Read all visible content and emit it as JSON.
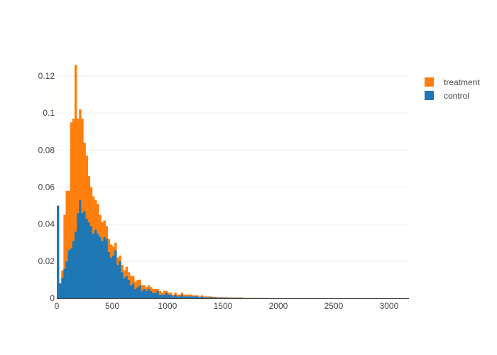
{
  "chart_data": {
    "type": "bar",
    "subtype": "stacked-histogram",
    "title": "",
    "xlabel": "",
    "ylabel": "",
    "bin_width": 20,
    "xlim": [
      0,
      3180
    ],
    "ylim": [
      0,
      0.13
    ],
    "x_ticks": [
      0,
      500,
      1000,
      1500,
      2000,
      2500,
      3000
    ],
    "y_ticks": [
      0,
      0.02,
      0.04,
      0.06,
      0.08,
      0.1,
      0.12
    ],
    "x_tick_labels": [
      "0",
      "500",
      "1000",
      "1500",
      "2000",
      "2500",
      "3000"
    ],
    "y_tick_labels": [
      "0",
      "0.02",
      "0.04",
      "0.06",
      "0.08",
      "0.1",
      "0.12"
    ],
    "grid": "horizontal",
    "legend_position": "top-right",
    "bin_starts": [
      0,
      20,
      40,
      60,
      80,
      100,
      120,
      140,
      160,
      180,
      200,
      220,
      240,
      260,
      280,
      300,
      320,
      340,
      360,
      380,
      400,
      420,
      440,
      460,
      480,
      500,
      520,
      540,
      560,
      580,
      600,
      620,
      640,
      660,
      680,
      700,
      720,
      740,
      760,
      780,
      800,
      820,
      840,
      860,
      880,
      900,
      920,
      940,
      960,
      980,
      1000,
      1020,
      1040,
      1060,
      1080,
      1100,
      1120,
      1140,
      1160,
      1180,
      1200,
      1220,
      1240,
      1260,
      1280,
      1300,
      1320,
      1340,
      1360,
      1380,
      1400,
      1420,
      1440,
      1460,
      1480,
      1500,
      1520,
      1540,
      1560,
      1580,
      1600,
      1620,
      1640,
      1660,
      1680,
      1700,
      1720,
      1740,
      1760,
      1780,
      1800,
      1820,
      1840,
      1860,
      1880
    ],
    "series": [
      {
        "name": "control",
        "color": "#1f77b4",
        "values": [
          0.05,
          0.008,
          0.011,
          0.016,
          0.02,
          0.026,
          0.027,
          0.031,
          0.036,
          0.046,
          0.053,
          0.046,
          0.047,
          0.043,
          0.041,
          0.039,
          0.035,
          0.037,
          0.035,
          0.033,
          0.031,
          0.033,
          0.032,
          0.025,
          0.022,
          0.023,
          0.026,
          0.018,
          0.02,
          0.014,
          0.011,
          0.012,
          0.01,
          0.007,
          0.008,
          0.005,
          0.006,
          0.007,
          0.004,
          0.005,
          0.004,
          0.005,
          0.004,
          0.003,
          0.003,
          0.004,
          0.002,
          0.002,
          0.002,
          0.003,
          0.002,
          0.002,
          0.001,
          0.002,
          0.001,
          0.001,
          0.002,
          0.001,
          0.001,
          0.001,
          0.001,
          0.001,
          0.001,
          0.001,
          0.0005,
          0.001,
          0.0005,
          0.0005,
          0.0005,
          0.0005,
          0.0005,
          0.0005,
          0.0003,
          0.0003,
          0.0003,
          0.0003,
          0.0003,
          0.0002,
          0.0002,
          0.0002,
          0.0002,
          0.0002,
          0.0002,
          0.0002,
          0.0001,
          0.0001,
          0.0001,
          0.0001,
          0.0001,
          0.0001,
          0.0001,
          0.0001,
          0.0001,
          0.0001,
          0.0001
        ]
      },
      {
        "name": "treatment",
        "color": "#ff7f0e",
        "values": [
          0.0,
          0.0,
          0.004,
          0.029,
          0.038,
          0.032,
          0.068,
          0.066,
          0.09,
          0.051,
          0.049,
          0.051,
          0.037,
          0.034,
          0.025,
          0.021,
          0.02,
          0.016,
          0.016,
          0.012,
          0.01,
          0.009,
          0.007,
          0.007,
          0.007,
          0.005,
          0.004,
          0.004,
          0.003,
          0.004,
          0.004,
          0.005,
          0.004,
          0.005,
          0.004,
          0.004,
          0.004,
          0.003,
          0.003,
          0.002,
          0.002,
          0.002,
          0.002,
          0.002,
          0.002,
          0.001,
          0.002,
          0.001,
          0.002,
          0.001,
          0.001,
          0.001,
          0.001,
          0.001,
          0.001,
          0.001,
          0.001,
          0.001,
          0.001,
          0.001,
          0.001,
          0.0005,
          0.0005,
          0.0005,
          0.0005,
          0.0005,
          0.0005,
          0.0005,
          0.0005,
          0.0005,
          0.0003,
          0.0003,
          0.0003,
          0.0003,
          0.0003,
          0.0003,
          0.0003,
          0.0002,
          0.0002,
          0.0002,
          0.0002,
          0.0002,
          0.0002,
          0.0001,
          0.0001,
          0.0001,
          0.0001,
          0.0001,
          0.0001,
          0.0001,
          0.0001,
          0.0001,
          0.0001,
          0.0001,
          0.0001
        ]
      }
    ]
  },
  "legend": {
    "items": [
      {
        "label": "treatment",
        "color": "#ff7f0e"
      },
      {
        "label": "control",
        "color": "#1f77b4"
      }
    ]
  }
}
